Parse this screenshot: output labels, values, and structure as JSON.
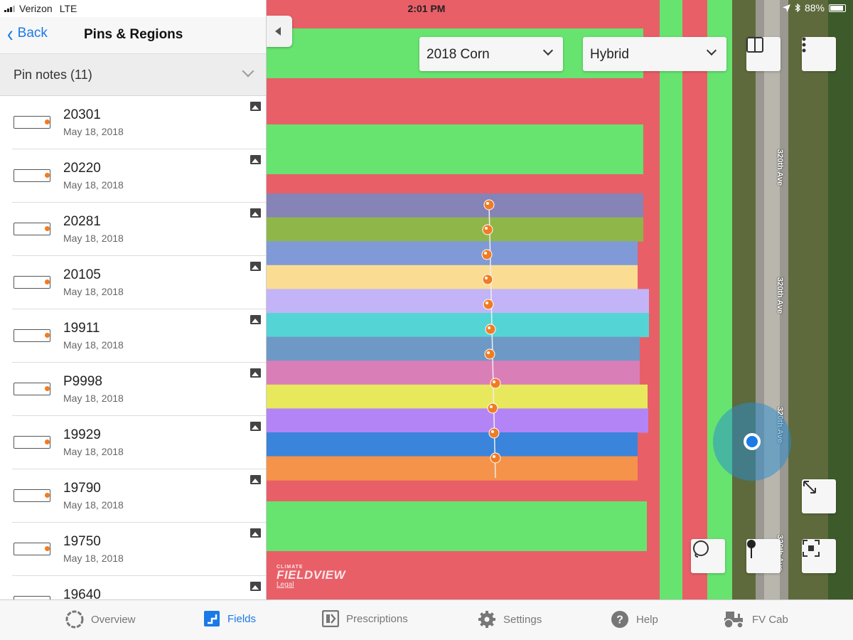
{
  "status_bar": {
    "carrier": "Verizon",
    "network": "LTE",
    "time": "2:01 PM",
    "battery": "88%",
    "battery_level": 0.88
  },
  "sidebar": {
    "back_label": "Back",
    "title": "Pins & Regions",
    "section_label": "Pin notes (11)",
    "pins": [
      {
        "title": "20301",
        "date": "May 18, 2018"
      },
      {
        "title": "20220",
        "date": "May 18, 2018"
      },
      {
        "title": "20281",
        "date": "May 18, 2018"
      },
      {
        "title": "20105",
        "date": "May 18, 2018"
      },
      {
        "title": "19911",
        "date": "May 18, 2018"
      },
      {
        "title": "P9998",
        "date": "May 18, 2018"
      },
      {
        "title": "19929",
        "date": "May 18, 2018"
      },
      {
        "title": "19790",
        "date": "May 18, 2018"
      },
      {
        "title": "19750",
        "date": "May 18, 2018"
      },
      {
        "title": "19640",
        "date": ""
      }
    ]
  },
  "map": {
    "season_select": "2018 Corn",
    "layer_select": "Hybrid",
    "road_label": "320th Ave",
    "logo_small": "CLIMATE",
    "logo_big": "FIELDVIEW",
    "legal_link": "Legal",
    "colors": {
      "red": "#e85f68",
      "green": "#67e36f",
      "location": "#1a7ae6",
      "pin": "#f07c24"
    },
    "hybrid_strip_colors": [
      "#8683b6",
      "#8fb649",
      "#7f9ad6",
      "#fbdc93",
      "#c2b4f7",
      "#55d4d5",
      "#6e99c6",
      "#da7eb8",
      "#e8e85d",
      "#b384f5",
      "#3b84db",
      "#f5934a"
    ]
  },
  "tabbar": {
    "tabs": [
      {
        "label": "Overview",
        "icon": "overview-icon"
      },
      {
        "label": "Fields",
        "icon": "fields-icon"
      },
      {
        "label": "Prescriptions",
        "icon": "prescriptions-icon"
      },
      {
        "label": "Settings",
        "icon": "settings-gear-icon"
      },
      {
        "label": "Help",
        "icon": "help-icon"
      },
      {
        "label": "FV Cab",
        "icon": "tractor-icon"
      }
    ],
    "active": "Fields"
  }
}
